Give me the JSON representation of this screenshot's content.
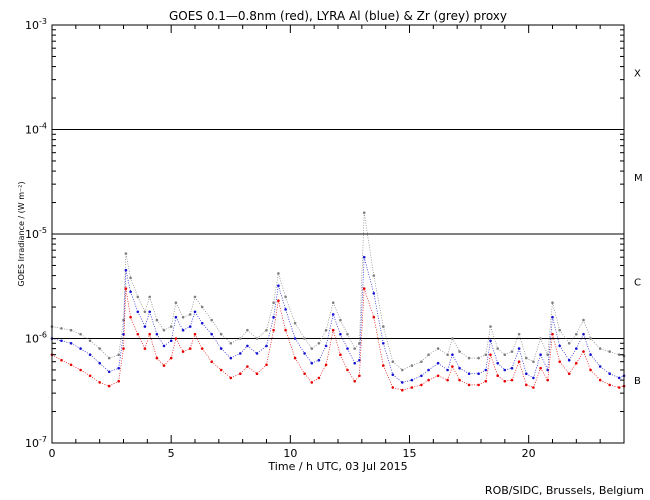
{
  "chart_data": {
    "type": "line",
    "title": "GOES 0.1—0.8nm (red), LYRA Al (blue) & Zr (grey) proxy",
    "xlabel": "Time / h UTC, 03 Jul 2015",
    "ylabel": "GOES Irradiance / (W m⁻²)",
    "xlim": [
      0,
      24
    ],
    "ylim": [
      1e-07,
      0.001
    ],
    "yscale": "log",
    "x_ticks": [
      {
        "value": 0,
        "label": "0"
      },
      {
        "value": 5,
        "label": "5"
      },
      {
        "value": 10,
        "label": "10"
      },
      {
        "value": 15,
        "label": "15"
      },
      {
        "value": 20,
        "label": "20"
      }
    ],
    "y_ticks": [
      {
        "value": 1e-07,
        "mantissa": "10",
        "exponent": "-7"
      },
      {
        "value": 1e-06,
        "mantissa": "10",
        "exponent": "-6"
      },
      {
        "value": 1e-05,
        "mantissa": "10",
        "exponent": "-5"
      },
      {
        "value": 0.0001,
        "mantissa": "10",
        "exponent": "-4"
      },
      {
        "value": 0.001,
        "mantissa": "10",
        "exponent": "-3"
      }
    ],
    "flare_class_lines": [
      1e-06,
      1e-05,
      0.0001
    ],
    "flare_classes": [
      {
        "label": "B",
        "center": 4e-07
      },
      {
        "label": "C",
        "center": 3.5e-06
      },
      {
        "label": "M",
        "center": 3.5e-05
      },
      {
        "label": "X",
        "center": 0.00035
      }
    ],
    "series": [
      {
        "color": "#808080",
        "x": [
          0,
          0.4,
          0.8,
          1.2,
          1.6,
          2.0,
          2.4,
          2.8,
          3.0,
          3.1,
          3.3,
          3.6,
          3.9,
          4.1,
          4.4,
          4.7,
          5.0,
          5.2,
          5.5,
          5.8,
          6.0,
          6.3,
          6.7,
          7.1,
          7.5,
          7.9,
          8.2,
          8.6,
          9.0,
          9.3,
          9.5,
          9.8,
          10.2,
          10.6,
          10.9,
          11.2,
          11.5,
          11.8,
          12.1,
          12.4,
          12.7,
          12.9,
          13.1,
          13.5,
          13.9,
          14.3,
          14.7,
          15.1,
          15.5,
          15.8,
          16.2,
          16.6,
          16.8,
          17.1,
          17.5,
          17.9,
          18.2,
          18.4,
          18.7,
          19.0,
          19.3,
          19.6,
          19.9,
          20.2,
          20.5,
          20.8,
          21.0,
          21.3,
          21.7,
          22.0,
          22.3,
          22.6,
          23.0,
          23.4,
          23.8,
          24.0
        ],
        "y": [
          1.3e-06,
          1.25e-06,
          1.2e-06,
          1.1e-06,
          9.5e-07,
          8e-07,
          6.5e-07,
          7e-07,
          1.5e-06,
          6.5e-06,
          3.8e-06,
          2.5e-06,
          1.8e-06,
          2.5e-06,
          1.5e-06,
          1.2e-06,
          1.3e-06,
          2.2e-06,
          1.6e-06,
          1.7e-06,
          2.5e-06,
          2e-06,
          1.5e-06,
          1.1e-06,
          9e-07,
          1e-06,
          1.2e-06,
          1e-06,
          1.2e-06,
          2.2e-06,
          4.2e-06,
          2.5e-06,
          1.4e-06,
          1e-06,
          8e-07,
          9e-07,
          1.2e-06,
          2.2e-06,
          1.5e-06,
          1.1e-06,
          8e-07,
          9e-07,
          1.6e-05,
          4e-06,
          1.3e-06,
          6e-07,
          5e-07,
          5.5e-07,
          6e-07,
          7e-07,
          8e-07,
          7e-07,
          1e-06,
          7.5e-07,
          6.5e-07,
          6.5e-07,
          7e-07,
          1.3e-06,
          8e-07,
          7e-07,
          7.5e-07,
          1.1e-06,
          6.5e-07,
          6e-07,
          1e-06,
          7e-07,
          2.2e-06,
          1.2e-06,
          9e-07,
          1.1e-06,
          1.5e-06,
          1e-06,
          8e-07,
          7.5e-07,
          7e-07,
          6.8e-07
        ]
      },
      {
        "color": "#1414d2",
        "x": [
          0,
          0.4,
          0.8,
          1.2,
          1.6,
          2.0,
          2.4,
          2.8,
          3.0,
          3.1,
          3.3,
          3.6,
          3.9,
          4.1,
          4.4,
          4.7,
          5.0,
          5.2,
          5.5,
          5.8,
          6.0,
          6.3,
          6.7,
          7.1,
          7.5,
          7.9,
          8.2,
          8.6,
          9.0,
          9.3,
          9.5,
          9.8,
          10.2,
          10.6,
          10.9,
          11.2,
          11.5,
          11.8,
          12.1,
          12.4,
          12.7,
          12.9,
          13.1,
          13.5,
          13.9,
          14.3,
          14.7,
          15.1,
          15.5,
          15.8,
          16.2,
          16.6,
          16.8,
          17.1,
          17.5,
          17.9,
          18.2,
          18.4,
          18.7,
          19.0,
          19.3,
          19.6,
          19.9,
          20.2,
          20.5,
          20.8,
          21.0,
          21.3,
          21.7,
          22.0,
          22.3,
          22.6,
          23.0,
          23.4,
          23.8,
          24.0
        ],
        "y": [
          1e-06,
          9.5e-07,
          9e-07,
          8e-07,
          7e-07,
          5.8e-07,
          4.8e-07,
          5.2e-07,
          1.1e-06,
          4.5e-06,
          2.8e-06,
          1.8e-06,
          1.3e-06,
          1.8e-06,
          1.1e-06,
          8.5e-07,
          9.5e-07,
          1.6e-06,
          1.2e-06,
          1.3e-06,
          1.8e-06,
          1.4e-06,
          1.1e-06,
          8e-07,
          6.5e-07,
          7.2e-07,
          8.5e-07,
          7.2e-07,
          8.5e-07,
          1.6e-06,
          3.2e-06,
          1.9e-06,
          1e-06,
          7.2e-07,
          5.8e-07,
          6.2e-07,
          8.5e-07,
          1.7e-06,
          1.1e-06,
          8e-07,
          5.8e-07,
          6.2e-07,
          6e-06,
          2.7e-06,
          9e-07,
          4.5e-07,
          3.8e-07,
          4e-07,
          4.4e-07,
          5e-07,
          5.8e-07,
          5e-07,
          7e-07,
          5.2e-07,
          4.6e-07,
          4.6e-07,
          5e-07,
          9.5e-07,
          5.8e-07,
          5e-07,
          5.2e-07,
          8e-07,
          4.6e-07,
          4.2e-07,
          7e-07,
          5e-07,
          1.6e-06,
          8.5e-07,
          6.2e-07,
          8e-07,
          1.1e-06,
          7e-07,
          5.4e-07,
          4.6e-07,
          4.2e-07,
          4.4e-07
        ]
      },
      {
        "color": "#e60000",
        "x": [
          0,
          0.4,
          0.8,
          1.2,
          1.6,
          2.0,
          2.4,
          2.8,
          3.0,
          3.1,
          3.3,
          3.6,
          3.9,
          4.1,
          4.4,
          4.7,
          5.0,
          5.2,
          5.5,
          5.8,
          6.0,
          6.3,
          6.7,
          7.1,
          7.5,
          7.9,
          8.2,
          8.6,
          9.0,
          9.3,
          9.5,
          9.8,
          10.2,
          10.6,
          10.9,
          11.2,
          11.5,
          11.8,
          12.1,
          12.4,
          12.7,
          12.9,
          13.1,
          13.5,
          13.9,
          14.3,
          14.7,
          15.1,
          15.5,
          15.8,
          16.2,
          16.6,
          16.8,
          17.1,
          17.5,
          17.9,
          18.2,
          18.4,
          18.7,
          19.0,
          19.3,
          19.6,
          19.9,
          20.2,
          20.5,
          20.8,
          21.0,
          21.3,
          21.7,
          22.0,
          22.3,
          22.6,
          23.0,
          23.4,
          23.8,
          24.0
        ],
        "y": [
          7e-07,
          6.2e-07,
          5.6e-07,
          5e-07,
          4.4e-07,
          3.8e-07,
          3.5e-07,
          3.9e-07,
          8e-07,
          3e-06,
          1.6e-06,
          1.1e-06,
          8e-07,
          1.1e-06,
          6.5e-07,
          5.5e-07,
          6.5e-07,
          1e-06,
          7.5e-07,
          8e-07,
          1.1e-06,
          8e-07,
          6e-07,
          5e-07,
          4.2e-07,
          4.6e-07,
          5.4e-07,
          4.6e-07,
          5.6e-07,
          1.2e-06,
          2.3e-06,
          1.2e-06,
          6.5e-07,
          4.6e-07,
          3.8e-07,
          4.2e-07,
          5.6e-07,
          1.2e-06,
          7e-07,
          5e-07,
          3.9e-07,
          4.4e-07,
          3e-06,
          1.6e-06,
          5.5e-07,
          3.4e-07,
          3.2e-07,
          3.4e-07,
          3.6e-07,
          4e-07,
          4.4e-07,
          4e-07,
          5.4e-07,
          4e-07,
          3.6e-07,
          3.6e-07,
          3.9e-07,
          7e-07,
          4.4e-07,
          3.9e-07,
          4e-07,
          6e-07,
          3.6e-07,
          3.4e-07,
          5.2e-07,
          4e-07,
          1.1e-06,
          6e-07,
          4.6e-07,
          5.8e-07,
          7.5e-07,
          5e-07,
          4e-07,
          3.6e-07,
          3.4e-07,
          3.5e-07
        ]
      }
    ]
  },
  "credit": "ROB/SIDC, Brussels, Belgium"
}
